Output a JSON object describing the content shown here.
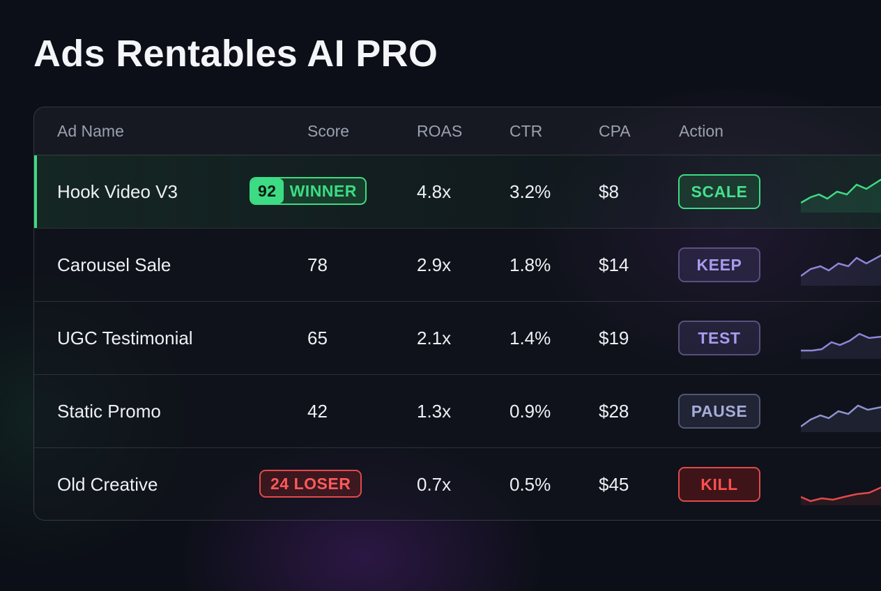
{
  "header": {
    "title": "Ads Rentables AI PRO"
  },
  "table": {
    "columns": [
      "Ad Name",
      "Score",
      "ROAS",
      "CTR",
      "CPA",
      "Action"
    ],
    "rows": [
      {
        "name": "Hook Video V3",
        "score": "92",
        "badge": "WINNER",
        "roas": "4.8x",
        "ctr": "3.2%",
        "cpa": "$8",
        "action": "SCALE"
      },
      {
        "name": "Carousel Sale",
        "score": "78",
        "roas": "2.9x",
        "ctr": "1.8%",
        "cpa": "$14",
        "action": "KEEP"
      },
      {
        "name": "UGC Testimonial",
        "score": "65",
        "roas": "2.1x",
        "ctr": "1.4%",
        "cpa": "$19",
        "action": "TEST"
      },
      {
        "name": "Static Promo",
        "score": "42",
        "roas": "1.3x",
        "ctr": "0.9%",
        "cpa": "$28",
        "action": "PAUSE"
      },
      {
        "name": "Old Creative",
        "score": "24",
        "badge": "LOSER",
        "roas": "0.7x",
        "ctr": "0.5%",
        "cpa": "$45",
        "action": "KILL"
      }
    ]
  }
}
